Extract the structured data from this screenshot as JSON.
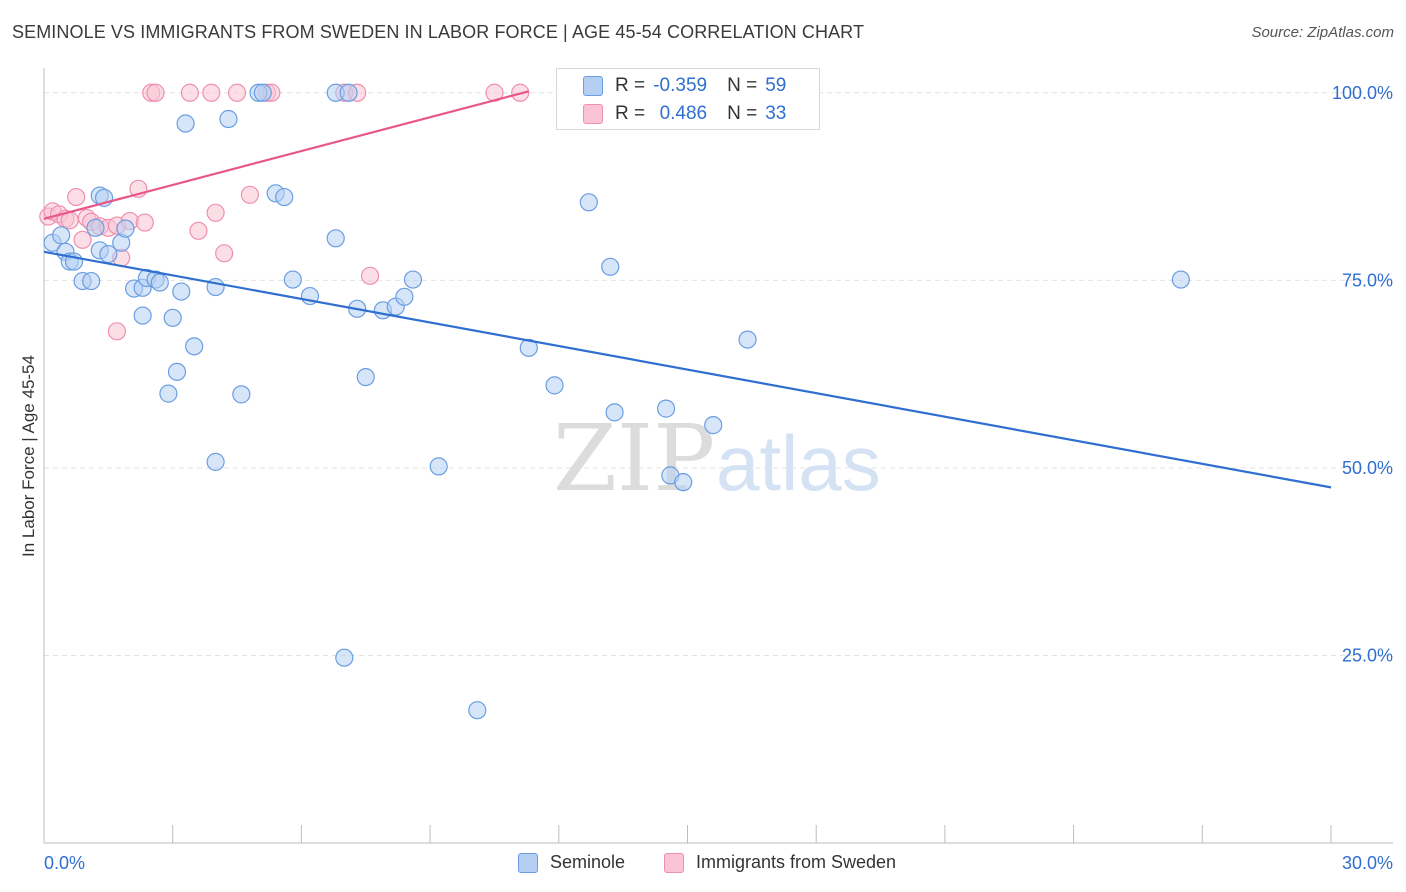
{
  "title": "SEMINOLE VS IMMIGRANTS FROM SWEDEN IN LABOR FORCE | AGE 45-54 CORRELATION CHART",
  "source": "Source: ZipAtlas.com",
  "watermark": {
    "zip": "ZIP",
    "atlas": "atlas"
  },
  "stats": {
    "r_label": "R =",
    "n_label": "N =",
    "rows": [
      {
        "name": "Seminole",
        "r": "-0.359",
        "n": "59",
        "fill": "#b5cff3",
        "stroke": "#6a9ee2"
      },
      {
        "name": "Immigrants from Sweden",
        "r": "0.486",
        "n": "33",
        "fill": "#f9c3d4",
        "stroke": "#ef90ae"
      }
    ]
  },
  "legend": {
    "items": [
      {
        "label": "Seminole",
        "fill": "#b5cff3",
        "stroke": "#6a9ee2"
      },
      {
        "label": "Immigrants from Sweden",
        "fill": "#f9c3d4",
        "stroke": "#ef90ae"
      }
    ]
  },
  "chart_data": {
    "type": "scatter",
    "title": "SEMINOLE VS IMMIGRANTS FROM SWEDEN IN LABOR FORCE | AGE 45-54 CORRELATION CHART",
    "xlabel": "",
    "ylabel": "In Labor Force | Age 45-54",
    "xlim": [
      0,
      30
    ],
    "ylim": [
      0,
      103.3
    ],
    "x_tick_labels": [
      {
        "value": 0,
        "label": "0.0%"
      },
      {
        "value": 30,
        "label": "30.0%"
      }
    ],
    "y_tick_labels": [
      {
        "value": 100,
        "label": "100.0%"
      },
      {
        "value": 75,
        "label": "75.0%"
      },
      {
        "value": 50,
        "label": "50.0%"
      },
      {
        "value": 25,
        "label": "25.0%"
      }
    ],
    "x_minor_ticks": [
      0,
      3,
      6,
      9,
      12,
      15,
      18,
      21,
      24,
      27,
      30
    ],
    "grid": true,
    "colors": {
      "seminole": "#2f6fcf",
      "sweden": "#e8578a",
      "axis_label": "#2f6fcf",
      "grid": "#e2e2e2"
    },
    "series": [
      {
        "name": "Seminole",
        "color": "#2f6fcf",
        "trend": {
          "x0": 0,
          "y0": 78.8,
          "x1": 30,
          "y1": 47.4
        },
        "points": [
          [
            0.2,
            80.0
          ],
          [
            0.4,
            81.0
          ],
          [
            0.5,
            78.8
          ],
          [
            0.6,
            77.5
          ],
          [
            0.7,
            77.5
          ],
          [
            0.9,
            74.9
          ],
          [
            1.1,
            74.9
          ],
          [
            1.3,
            86.3
          ],
          [
            1.4,
            86.0
          ],
          [
            1.2,
            82.0
          ],
          [
            1.3,
            79.0
          ],
          [
            1.5,
            78.5
          ],
          [
            1.8,
            80.0
          ],
          [
            1.9,
            81.9
          ],
          [
            2.1,
            73.9
          ],
          [
            2.3,
            74.0
          ],
          [
            2.4,
            75.3
          ],
          [
            2.6,
            75.1
          ],
          [
            2.7,
            74.7
          ],
          [
            2.3,
            70.3
          ],
          [
            3.0,
            70.0
          ],
          [
            3.2,
            73.5
          ],
          [
            3.3,
            95.9
          ],
          [
            3.5,
            66.2
          ],
          [
            3.1,
            62.8
          ],
          [
            2.9,
            59.9
          ],
          [
            4.0,
            74.1
          ],
          [
            4.3,
            96.5
          ],
          [
            4.6,
            59.8
          ],
          [
            5.0,
            100.0
          ],
          [
            5.1,
            100.0
          ],
          [
            5.4,
            86.6
          ],
          [
            5.6,
            86.1
          ],
          [
            5.8,
            75.1
          ],
          [
            6.2,
            72.9
          ],
          [
            6.8,
            80.6
          ],
          [
            7.3,
            71.2
          ],
          [
            7.5,
            62.1
          ],
          [
            7.9,
            71.0
          ],
          [
            8.2,
            71.5
          ],
          [
            8.4,
            72.8
          ],
          [
            8.6,
            75.1
          ],
          [
            9.2,
            50.2
          ],
          [
            10.1,
            17.7
          ],
          [
            6.8,
            100.0
          ],
          [
            7.1,
            100.0
          ],
          [
            11.3,
            66.0
          ],
          [
            11.9,
            61.0
          ],
          [
            12.7,
            85.4
          ],
          [
            13.2,
            76.8
          ],
          [
            13.3,
            57.4
          ],
          [
            14.5,
            57.9
          ],
          [
            14.6,
            49.0
          ],
          [
            14.9,
            48.1
          ],
          [
            15.6,
            55.7
          ],
          [
            16.4,
            67.1
          ],
          [
            26.5,
            75.1
          ],
          [
            4.0,
            50.8
          ],
          [
            7.0,
            24.7
          ]
        ]
      },
      {
        "name": "Immigrants from Sweden",
        "color": "#e8578a",
        "trend": {
          "x0": 0,
          "y0": 83.2,
          "x1": 11.3,
          "y1": 100.2
        },
        "points": [
          [
            0.1,
            83.5
          ],
          [
            0.2,
            84.2
          ],
          [
            0.35,
            83.8
          ],
          [
            0.5,
            83.2
          ],
          [
            0.6,
            83.0
          ],
          [
            0.75,
            86.1
          ],
          [
            0.9,
            80.4
          ],
          [
            1.0,
            83.3
          ],
          [
            1.1,
            82.8
          ],
          [
            1.3,
            82.2
          ],
          [
            1.5,
            82.0
          ],
          [
            1.7,
            82.3
          ],
          [
            1.8,
            78.0
          ],
          [
            2.0,
            82.9
          ],
          [
            2.2,
            87.2
          ],
          [
            2.35,
            82.7
          ],
          [
            2.5,
            100.0
          ],
          [
            2.6,
            100.0
          ],
          [
            1.7,
            68.2
          ],
          [
            3.6,
            81.6
          ],
          [
            3.9,
            100.0
          ],
          [
            4.0,
            84.0
          ],
          [
            4.2,
            78.6
          ],
          [
            4.5,
            100.0
          ],
          [
            4.8,
            86.4
          ],
          [
            5.2,
            100.0
          ],
          [
            5.3,
            100.0
          ],
          [
            7.0,
            100.0
          ],
          [
            7.3,
            100.0
          ],
          [
            10.5,
            100.0
          ],
          [
            11.1,
            100.0
          ],
          [
            7.6,
            75.6
          ],
          [
            3.4,
            100.0
          ]
        ]
      }
    ]
  }
}
